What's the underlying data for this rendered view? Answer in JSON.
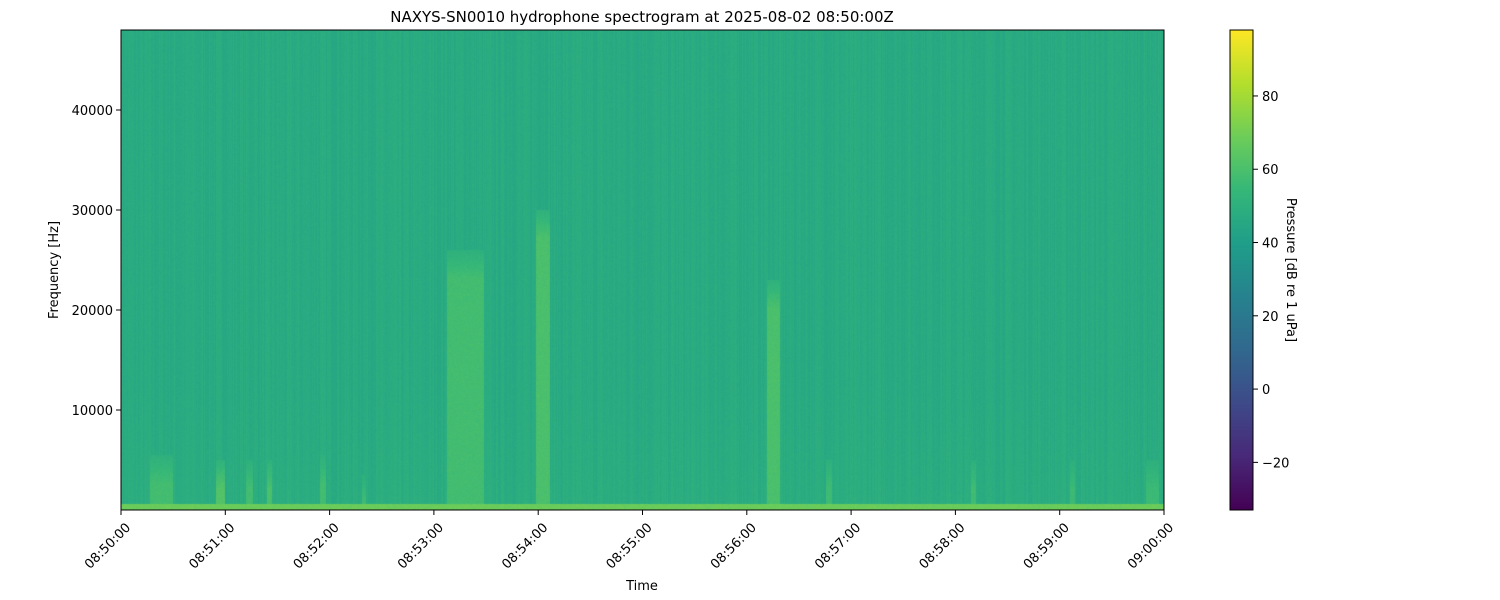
{
  "chart_data": {
    "type": "heatmap",
    "title": "NAXYS-SN0010 hydrophone spectrogram at 2025-08-02 08:50:00Z",
    "xlabel": "Time",
    "ylabel": "Frequency [Hz]",
    "colorbar_label": "Pressure [dB re 1 uPa]",
    "colormap": "viridis",
    "xlim": [
      "08:50:00",
      "09:00:00"
    ],
    "ylim": [
      0,
      48000
    ],
    "clim": [
      -33,
      98
    ],
    "x_ticks": [
      "08:50:00",
      "08:51:00",
      "08:52:00",
      "08:53:00",
      "08:54:00",
      "08:55:00",
      "08:56:00",
      "08:57:00",
      "08:58:00",
      "08:59:00",
      "09:00:00"
    ],
    "y_ticks": [
      10000,
      20000,
      30000,
      40000
    ],
    "y_tick_labels": [
      "10000",
      "20000",
      "30000",
      "40000"
    ],
    "colorbar_ticks": [
      -20,
      0,
      20,
      40,
      60,
      80
    ],
    "colorbar_tick_labels": [
      "−20",
      "0",
      "20",
      "40",
      "60",
      "80"
    ],
    "background_level_db": 47,
    "low_frequency_band": {
      "max_hz": 600,
      "level_db": 68
    },
    "events": [
      {
        "start": "08:50:17",
        "end": "08:50:29",
        "max_hz": 5500,
        "level_db": 58
      },
      {
        "start": "08:50:55",
        "end": "08:50:59",
        "max_hz": 5000,
        "level_db": 62
      },
      {
        "start": "08:51:12",
        "end": "08:51:15",
        "max_hz": 5000,
        "level_db": 58
      },
      {
        "start": "08:51:24",
        "end": "08:51:26",
        "max_hz": 5000,
        "level_db": 60
      },
      {
        "start": "08:51:55",
        "end": "08:51:57",
        "max_hz": 5500,
        "level_db": 58
      },
      {
        "start": "08:52:19",
        "end": "08:52:20",
        "max_hz": 3500,
        "level_db": 58
      },
      {
        "start": "08:53:08",
        "end": "08:53:28",
        "max_hz": 26000,
        "level_db": 58
      },
      {
        "start": "08:53:59",
        "end": "08:54:06",
        "max_hz": 30000,
        "level_db": 60
      },
      {
        "start": "08:56:12",
        "end": "08:56:18",
        "max_hz": 23000,
        "level_db": 60
      },
      {
        "start": "08:56:46",
        "end": "08:56:48",
        "max_hz": 5000,
        "level_db": 57
      },
      {
        "start": "08:58:09",
        "end": "08:58:11",
        "max_hz": 5000,
        "level_db": 57
      },
      {
        "start": "08:59:06",
        "end": "08:59:08",
        "max_hz": 5000,
        "level_db": 56
      },
      {
        "start": "08:59:50",
        "end": "08:59:56",
        "max_hz": 5000,
        "level_db": 56
      }
    ]
  }
}
